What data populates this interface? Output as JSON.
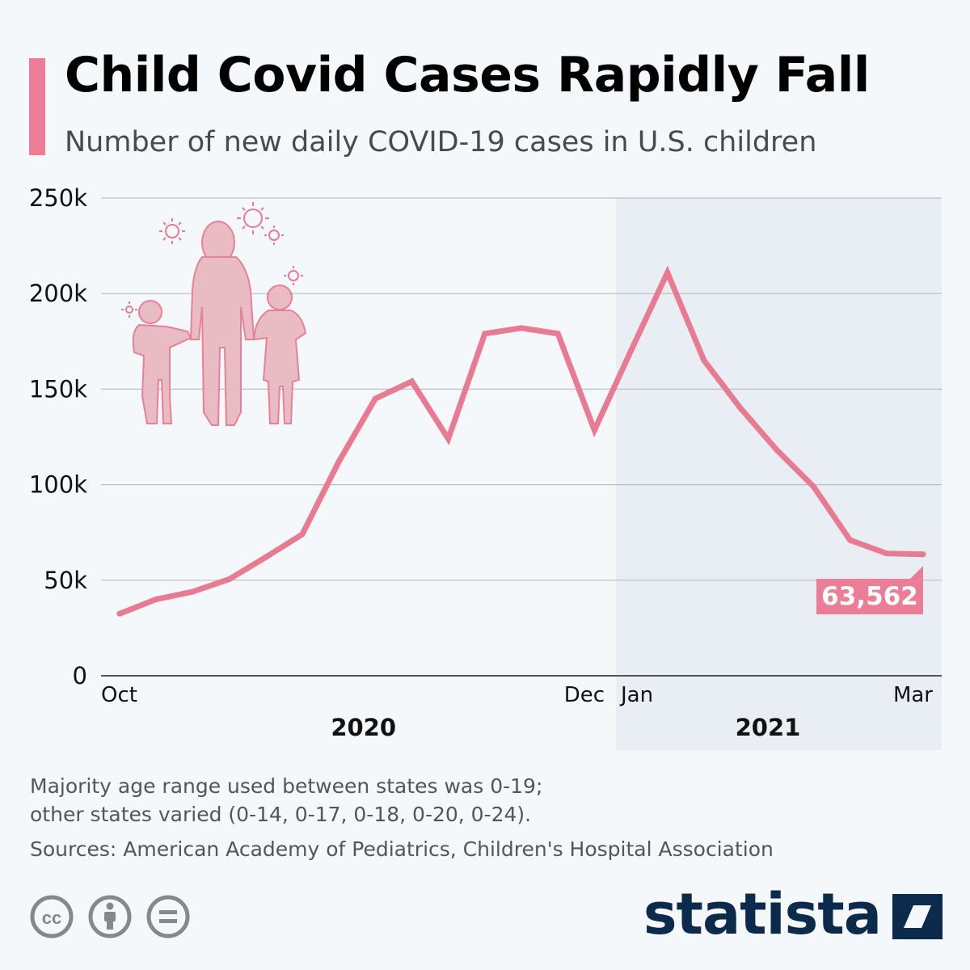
{
  "title": "Child Covid Cases Rapidly Fall",
  "subtitle": "Number of new daily COVID-19 cases in U.S. children",
  "footnotes": {
    "line1": "Majority age range used between states was 0-19;",
    "line2": "other states varied (0-14, 0-17, 0-18, 0-20, 0-24).",
    "sources": "Sources: American Academy of Pediatrics, Children's Hospital Association"
  },
  "brand": "statista",
  "colors": {
    "line": "#e87a92",
    "accent": "#ec7d96",
    "highlight_band": "#e9edf4",
    "grid": "#b9bec4",
    "brand": "#0c2a4c"
  },
  "chart_data": {
    "type": "line",
    "title": "Child Covid Cases Rapidly Fall",
    "subtitle": "Number of new daily COVID-19 cases in U.S. children",
    "xlabel": "",
    "ylabel": "",
    "ylim": [
      0,
      250000
    ],
    "yticks": [
      0,
      50000,
      100000,
      150000,
      200000,
      250000
    ],
    "ytick_labels": [
      "0",
      "50k",
      "100k",
      "150k",
      "200k",
      "250k"
    ],
    "grid": true,
    "x_month_labels": [
      {
        "label": "Oct",
        "index": 0
      },
      {
        "label": "Dec",
        "index": 13
      },
      {
        "label": "Jan",
        "index": 14
      },
      {
        "label": "Mar",
        "index": 22
      }
    ],
    "year_labels": [
      {
        "label": "2020",
        "from_index": 0,
        "to_index": 13
      },
      {
        "label": "2021",
        "from_index": 13.5,
        "to_index": 22.5
      }
    ],
    "highlight_from_index": 13.5,
    "series": [
      {
        "name": "New daily cases",
        "values": [
          32500,
          40000,
          44000,
          50500,
          62000,
          74000,
          112000,
          145000,
          154000,
          124000,
          179000,
          182000,
          179000,
          128500,
          170000,
          211000,
          165000,
          140000,
          118000,
          99000,
          71000,
          64000,
          63562
        ]
      }
    ],
    "annotations": [
      {
        "text": "63,562",
        "index": 22,
        "value": 63562
      }
    ]
  }
}
